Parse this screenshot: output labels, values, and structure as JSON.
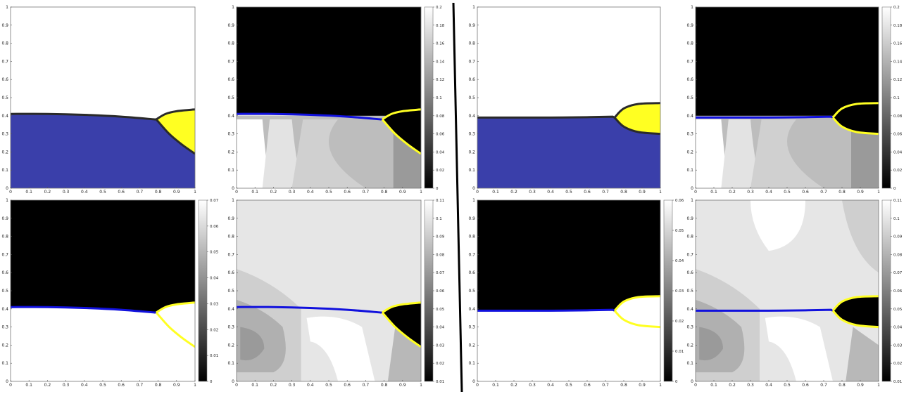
{
  "chart_data": [
    {
      "id": "A1",
      "type": "heatmap",
      "style": "phase",
      "xlim": [
        0,
        1
      ],
      "ylim": [
        0,
        1
      ],
      "xticks": [
        0,
        0.1,
        0.2,
        0.3,
        0.4,
        0.5,
        0.6,
        0.7,
        0.8,
        0.9,
        1
      ],
      "yticks": [
        0,
        0.1,
        0.2,
        0.3,
        0.4,
        0.5,
        0.6,
        0.7,
        0.8,
        0.9,
        1
      ],
      "interface": [
        [
          0,
          0.41
        ],
        [
          0.2,
          0.41
        ],
        [
          0.4,
          0.405
        ],
        [
          0.6,
          0.395
        ],
        [
          0.78,
          0.38
        ]
      ],
      "droplet": {
        "tip": [
          0.79,
          0.38
        ],
        "upper": [
          [
            0.79,
            0.38
          ],
          [
            0.84,
            0.41
          ],
          [
            0.9,
            0.425
          ],
          [
            1,
            0.435
          ]
        ],
        "lower": [
          [
            0.79,
            0.38
          ],
          [
            0.86,
            0.3
          ],
          [
            0.93,
            0.24
          ],
          [
            1,
            0.19
          ]
        ]
      },
      "colorbar": null
    },
    {
      "id": "A2",
      "type": "heatmap",
      "style": "field",
      "xlim": [
        0,
        1
      ],
      "ylim": [
        0,
        1
      ],
      "xticks": [
        0,
        0.1,
        0.2,
        0.3,
        0.4,
        0.5,
        0.6,
        0.7,
        0.8,
        0.9,
        1
      ],
      "yticks": [
        0,
        0.1,
        0.2,
        0.3,
        0.4,
        0.5,
        0.6,
        0.7,
        0.8,
        0.9,
        1
      ],
      "interface": [
        [
          0,
          0.41
        ],
        [
          0.2,
          0.41
        ],
        [
          0.4,
          0.405
        ],
        [
          0.6,
          0.395
        ],
        [
          0.78,
          0.38
        ]
      ],
      "droplet": {
        "tip": [
          0.79,
          0.38
        ],
        "upper": [
          [
            0.79,
            0.38
          ],
          [
            0.84,
            0.41
          ],
          [
            0.9,
            0.425
          ],
          [
            1,
            0.435
          ]
        ],
        "lower": [
          [
            0.79,
            0.38
          ],
          [
            0.86,
            0.3
          ],
          [
            0.93,
            0.24
          ],
          [
            1,
            0.19
          ]
        ]
      },
      "colorbar": {
        "min": 0,
        "max": 0.22,
        "ticks": [
          "0",
          "0.02",
          "0.04",
          "0.06",
          "0.08",
          "0.1",
          "0.12",
          "0.14",
          "0.16",
          "0.18",
          "0.2"
        ]
      }
    },
    {
      "id": "A3",
      "type": "heatmap",
      "style": "field",
      "xlim": [
        0,
        1
      ],
      "ylim": [
        0,
        1
      ],
      "xticks": [
        0,
        0.1,
        0.2,
        0.3,
        0.4,
        0.5,
        0.6,
        0.7,
        0.8,
        0.9,
        1
      ],
      "yticks": [
        0,
        0.1,
        0.2,
        0.3,
        0.4,
        0.5,
        0.6,
        0.7,
        0.8,
        0.9,
        1
      ],
      "interface": [
        [
          0,
          0.41
        ],
        [
          0.2,
          0.41
        ],
        [
          0.4,
          0.405
        ],
        [
          0.6,
          0.395
        ],
        [
          0.78,
          0.38
        ]
      ],
      "droplet": {
        "tip": [
          0.79,
          0.38
        ],
        "upper": [
          [
            0.79,
            0.38
          ],
          [
            0.84,
            0.41
          ],
          [
            0.9,
            0.425
          ],
          [
            1,
            0.435
          ]
        ],
        "lower": [
          [
            0.79,
            0.38
          ],
          [
            0.86,
            0.3
          ],
          [
            0.93,
            0.24
          ],
          [
            1,
            0.19
          ]
        ]
      },
      "colorbar": {
        "min": 0,
        "max": 0.07,
        "ticks": [
          "0",
          "0.01",
          "0.02",
          "0.03",
          "0.04",
          "0.05",
          "0.06",
          "0.07"
        ]
      }
    },
    {
      "id": "A4",
      "type": "heatmap",
      "style": "field",
      "xlim": [
        0,
        1
      ],
      "ylim": [
        0,
        1
      ],
      "xticks": [
        0,
        0.1,
        0.2,
        0.3,
        0.4,
        0.5,
        0.6,
        0.7,
        0.8,
        0.9,
        1
      ],
      "yticks": [
        0,
        0.1,
        0.2,
        0.3,
        0.4,
        0.5,
        0.6,
        0.7,
        0.8,
        0.9,
        1
      ],
      "interface": [
        [
          0,
          0.41
        ],
        [
          0.2,
          0.41
        ],
        [
          0.4,
          0.405
        ],
        [
          0.6,
          0.395
        ],
        [
          0.78,
          0.38
        ]
      ],
      "droplet": {
        "tip": [
          0.79,
          0.38
        ],
        "upper": [
          [
            0.79,
            0.38
          ],
          [
            0.84,
            0.41
          ],
          [
            0.9,
            0.425
          ],
          [
            1,
            0.435
          ]
        ],
        "lower": [
          [
            0.79,
            0.38
          ],
          [
            0.86,
            0.3
          ],
          [
            0.93,
            0.24
          ],
          [
            1,
            0.19
          ]
        ]
      },
      "colorbar": {
        "min": 0,
        "max": 0.11,
        "ticks": [
          "0.01",
          "0.02",
          "0.03",
          "0.04",
          "0.05",
          "0.06",
          "0.07",
          "0.08",
          "0.09",
          "0.1",
          "0.11"
        ]
      }
    },
    {
      "id": "B1",
      "type": "heatmap",
      "style": "phase",
      "xlim": [
        0,
        1
      ],
      "ylim": [
        0,
        1
      ],
      "xticks": [
        0,
        0.1,
        0.2,
        0.3,
        0.4,
        0.5,
        0.6,
        0.7,
        0.8,
        0.9,
        1
      ],
      "yticks": [
        0,
        0.1,
        0.2,
        0.3,
        0.4,
        0.5,
        0.6,
        0.7,
        0.8,
        0.9,
        1
      ],
      "interface": [
        [
          0,
          0.39
        ],
        [
          0.2,
          0.39
        ],
        [
          0.4,
          0.39
        ],
        [
          0.6,
          0.392
        ],
        [
          0.74,
          0.395
        ]
      ],
      "droplet": {
        "tip": [
          0.75,
          0.39
        ],
        "upper": [
          [
            0.75,
            0.39
          ],
          [
            0.8,
            0.44
          ],
          [
            0.88,
            0.465
          ],
          [
            1,
            0.47
          ]
        ],
        "lower": [
          [
            0.75,
            0.39
          ],
          [
            0.8,
            0.34
          ],
          [
            0.88,
            0.31
          ],
          [
            1,
            0.3
          ]
        ]
      },
      "colorbar": null
    },
    {
      "id": "B2",
      "type": "heatmap",
      "style": "field",
      "xlim": [
        0,
        1
      ],
      "ylim": [
        0,
        1
      ],
      "xticks": [
        0,
        0.1,
        0.2,
        0.3,
        0.4,
        0.5,
        0.6,
        0.7,
        0.8,
        0.9,
        1
      ],
      "yticks": [
        0,
        0.1,
        0.2,
        0.3,
        0.4,
        0.5,
        0.6,
        0.7,
        0.8,
        0.9,
        1
      ],
      "interface": [
        [
          0,
          0.39
        ],
        [
          0.2,
          0.39
        ],
        [
          0.4,
          0.39
        ],
        [
          0.6,
          0.392
        ],
        [
          0.74,
          0.395
        ]
      ],
      "droplet": {
        "tip": [
          0.75,
          0.39
        ],
        "upper": [
          [
            0.75,
            0.39
          ],
          [
            0.8,
            0.44
          ],
          [
            0.88,
            0.465
          ],
          [
            1,
            0.47
          ]
        ],
        "lower": [
          [
            0.75,
            0.39
          ],
          [
            0.8,
            0.34
          ],
          [
            0.88,
            0.31
          ],
          [
            1,
            0.3
          ]
        ]
      },
      "colorbar": {
        "min": 0,
        "max": 0.2,
        "ticks": [
          "0",
          "0.02",
          "0.04",
          "0.06",
          "0.08",
          "0.1",
          "0.12",
          "0.14",
          "0.16",
          "0.18",
          "0.2"
        ]
      }
    },
    {
      "id": "B3",
      "type": "heatmap",
      "style": "field",
      "xlim": [
        0,
        1
      ],
      "ylim": [
        0,
        1
      ],
      "xticks": [
        0,
        0.1,
        0.2,
        0.3,
        0.4,
        0.5,
        0.6,
        0.7,
        0.8,
        0.9,
        1
      ],
      "yticks": [
        0,
        0.1,
        0.2,
        0.3,
        0.4,
        0.5,
        0.6,
        0.7,
        0.8,
        0.9,
        1
      ],
      "interface": [
        [
          0,
          0.39
        ],
        [
          0.2,
          0.39
        ],
        [
          0.4,
          0.39
        ],
        [
          0.6,
          0.392
        ],
        [
          0.74,
          0.395
        ]
      ],
      "droplet": {
        "tip": [
          0.75,
          0.39
        ],
        "upper": [
          [
            0.75,
            0.39
          ],
          [
            0.8,
            0.44
          ],
          [
            0.88,
            0.465
          ],
          [
            1,
            0.47
          ]
        ],
        "lower": [
          [
            0.75,
            0.39
          ],
          [
            0.8,
            0.34
          ],
          [
            0.88,
            0.31
          ],
          [
            1,
            0.3
          ]
        ]
      },
      "colorbar": {
        "min": 0,
        "max": 0.06,
        "ticks": [
          "0",
          "0.01",
          "0.02",
          "0.03",
          "0.04",
          "0.05",
          "0.06"
        ]
      }
    },
    {
      "id": "B4",
      "type": "heatmap",
      "style": "field",
      "xlim": [
        0,
        1
      ],
      "ylim": [
        0,
        1
      ],
      "xticks": [
        0,
        0.1,
        0.2,
        0.3,
        0.4,
        0.5,
        0.6,
        0.7,
        0.8,
        0.9,
        1
      ],
      "yticks": [
        0,
        0.1,
        0.2,
        0.3,
        0.4,
        0.5,
        0.6,
        0.7,
        0.8,
        0.9,
        1
      ],
      "interface": [
        [
          0,
          0.39
        ],
        [
          0.2,
          0.39
        ],
        [
          0.4,
          0.39
        ],
        [
          0.6,
          0.392
        ],
        [
          0.74,
          0.395
        ]
      ],
      "droplet": {
        "tip": [
          0.75,
          0.39
        ],
        "upper": [
          [
            0.75,
            0.39
          ],
          [
            0.8,
            0.44
          ],
          [
            0.88,
            0.465
          ],
          [
            1,
            0.47
          ]
        ],
        "lower": [
          [
            0.75,
            0.39
          ],
          [
            0.8,
            0.34
          ],
          [
            0.88,
            0.31
          ],
          [
            1,
            0.3
          ]
        ]
      },
      "colorbar": {
        "min": 0,
        "max": 0.11,
        "ticks": [
          "0.01",
          "0.02",
          "0.03",
          "0.04",
          "0.05",
          "0.06",
          "0.07",
          "0.08",
          "0.09",
          "0.1",
          "0.11"
        ]
      }
    }
  ],
  "colors": {
    "fluid_blue": "#3a3faa",
    "interface_blue": "#1111dd",
    "droplet_yellow": "#ffff22",
    "dark": "#000000",
    "outline": "#2a2a2a"
  }
}
